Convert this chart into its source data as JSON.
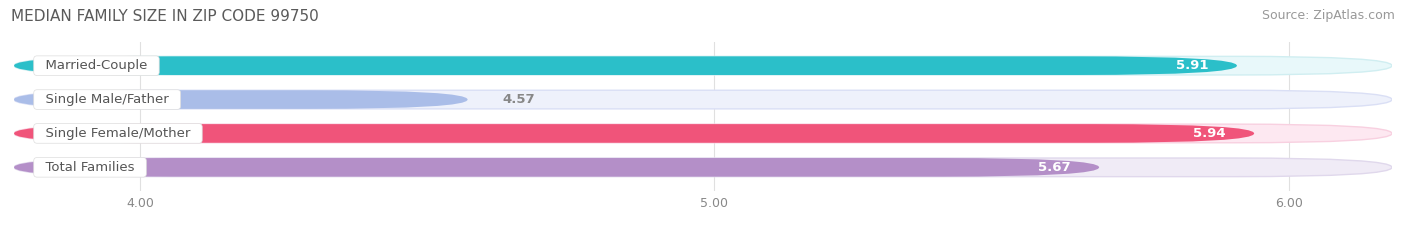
{
  "title": "MEDIAN FAMILY SIZE IN ZIP CODE 99750",
  "source": "Source: ZipAtlas.com",
  "categories": [
    "Married-Couple",
    "Single Male/Father",
    "Single Female/Mother",
    "Total Families"
  ],
  "values": [
    5.91,
    4.57,
    5.94,
    5.67
  ],
  "bar_colors": [
    "#2BBFC9",
    "#AABDE8",
    "#F0547A",
    "#B48FC8"
  ],
  "bar_bg_colors": [
    "#E8F8FA",
    "#EEF1FB",
    "#FDE8F1",
    "#F0EBF6"
  ],
  "bar_border_colors": [
    "#D0EEF1",
    "#DADFF5",
    "#F8D0E0",
    "#E0D8EC"
  ],
  "xlim": [
    3.78,
    6.18
  ],
  "xticks": [
    4.0,
    5.0,
    6.0
  ],
  "xtick_labels": [
    "4.00",
    "5.00",
    "6.00"
  ],
  "bar_height": 0.55,
  "label_fontsize": 9.5,
  "value_fontsize": 9.5,
  "title_fontsize": 11,
  "source_fontsize": 9,
  "title_color": "#5a5a5a",
  "source_color": "#999999",
  "label_color": "#555555",
  "value_color_inside": "#ffffff",
  "value_color_outside": "#888888",
  "grid_color": "#e0e0e0",
  "background_color": "#ffffff"
}
